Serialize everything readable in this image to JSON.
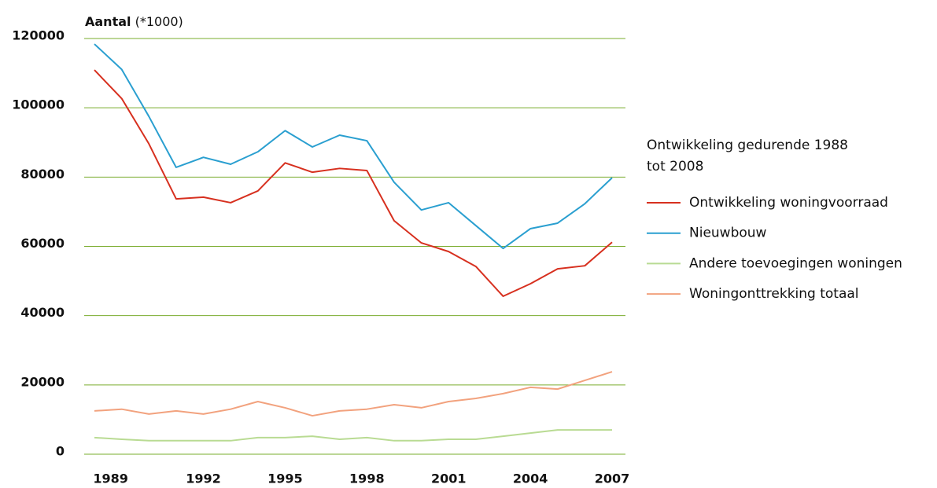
{
  "chart_data": {
    "type": "line",
    "y_label": "Aantal",
    "y_label_unit": "(*1000)",
    "legend_title": "Ontwikkeling gedurende 1988 tot 2008",
    "x": [
      1988,
      1989,
      1990,
      1991,
      1992,
      1993,
      1994,
      1995,
      1996,
      1997,
      1998,
      1999,
      2000,
      2001,
      2002,
      2003,
      2004,
      2005,
      2006,
      2007
    ],
    "xlim": [
      1988,
      2007
    ],
    "xticks": [
      1989,
      1992,
      1995,
      1998,
      2001,
      2004,
      2007
    ],
    "ylim": [
      0,
      120000
    ],
    "yticks": [
      0,
      20000,
      40000,
      60000,
      80000,
      100000,
      120000
    ],
    "grid": true,
    "grid_color": "#7aac2e",
    "legend": "right",
    "series": [
      {
        "name": "Ontwikkeling woningvoorraad",
        "color": "#d7301f",
        "values": [
          110900,
          102700,
          89600,
          73700,
          74200,
          72600,
          76000,
          84100,
          81400,
          82500,
          81900,
          67400,
          61000,
          58500,
          54200,
          45600,
          49200,
          53500,
          54400,
          61200
        ]
      },
      {
        "name": "Nieuwbouw",
        "color": "#2a9fd0",
        "values": [
          118400,
          111100,
          97500,
          82800,
          85700,
          83700,
          87300,
          93400,
          88700,
          92100,
          90500,
          78500,
          70500,
          72600,
          66000,
          59400,
          65100,
          66700,
          72300,
          79800
        ]
      },
      {
        "name": "Andere toevoegingen woningen",
        "color": "#b9db93",
        "values": [
          4800,
          4300,
          3900,
          3900,
          3900,
          3900,
          4800,
          4800,
          5200,
          4300,
          4800,
          3900,
          3900,
          4300,
          4300,
          5200,
          6100,
          7000,
          7000,
          7000
        ]
      },
      {
        "name": "Woningonttrekking totaal",
        "color": "#f2a27e",
        "values": [
          12500,
          13000,
          11600,
          12500,
          11600,
          13000,
          15200,
          13400,
          11100,
          12500,
          13000,
          14300,
          13400,
          15200,
          16100,
          17500,
          19300,
          18800,
          21300,
          23800
        ]
      }
    ]
  }
}
